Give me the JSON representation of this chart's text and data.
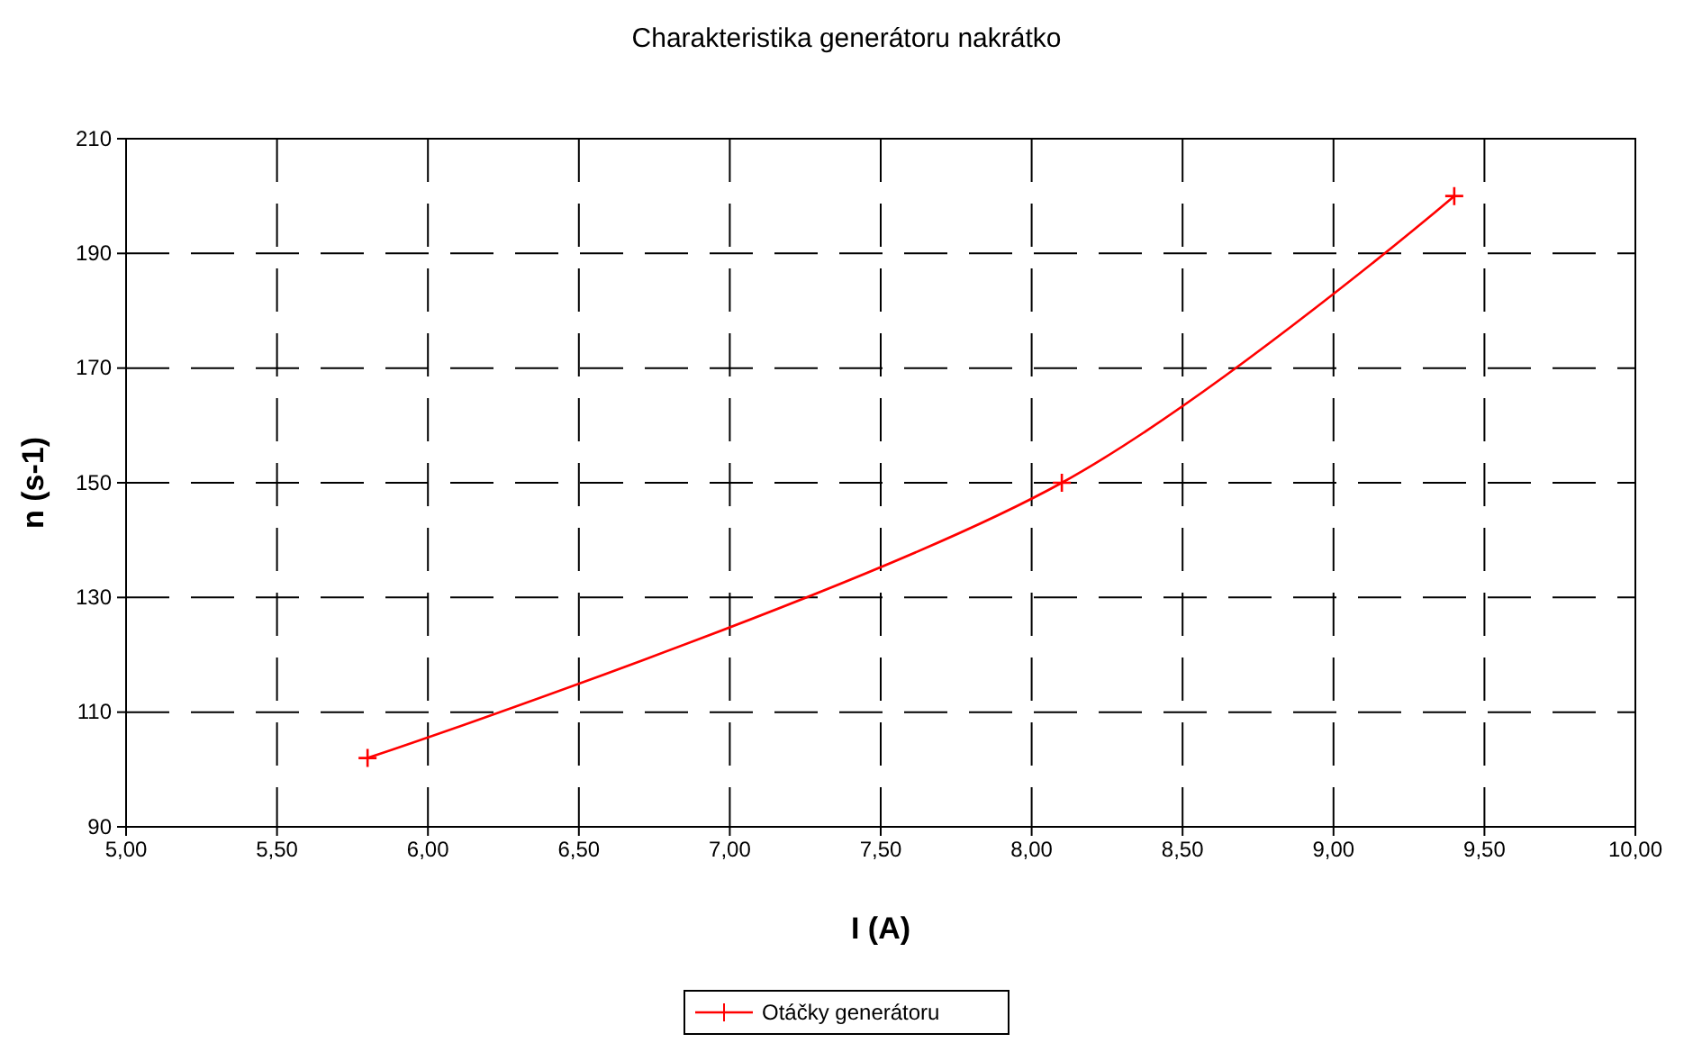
{
  "chart_data": {
    "type": "line",
    "title": "Charakteristika generátoru nakrátko",
    "xlabel": "I (A)",
    "ylabel": "n (s-1)",
    "x": [
      5.8,
      8.1,
      9.4
    ],
    "series": [
      {
        "name": "Otáčky generátoru",
        "color": "#ff0000",
        "values": [
          102,
          150,
          200
        ]
      }
    ],
    "xlim": [
      5,
      10
    ],
    "xticks": [
      {
        "value": 5,
        "label": "5,00"
      },
      {
        "value": 5.5,
        "label": "5,50"
      },
      {
        "value": 6,
        "label": "6,00"
      },
      {
        "value": 6.5,
        "label": "6,50"
      },
      {
        "value": 7,
        "label": "7,00"
      },
      {
        "value": 7.5,
        "label": "7,50"
      },
      {
        "value": 8,
        "label": "8,00"
      },
      {
        "value": 8.5,
        "label": "8,50"
      },
      {
        "value": 9,
        "label": "9,00"
      },
      {
        "value": 9.5,
        "label": "9,50"
      },
      {
        "value": 10,
        "label": "10,00"
      }
    ],
    "ylim": [
      90,
      210
    ],
    "yticks": [
      90,
      110,
      130,
      150,
      170,
      190,
      210
    ],
    "grid": true,
    "legend": "bottom",
    "marker": "cross",
    "line_style": "solid"
  }
}
